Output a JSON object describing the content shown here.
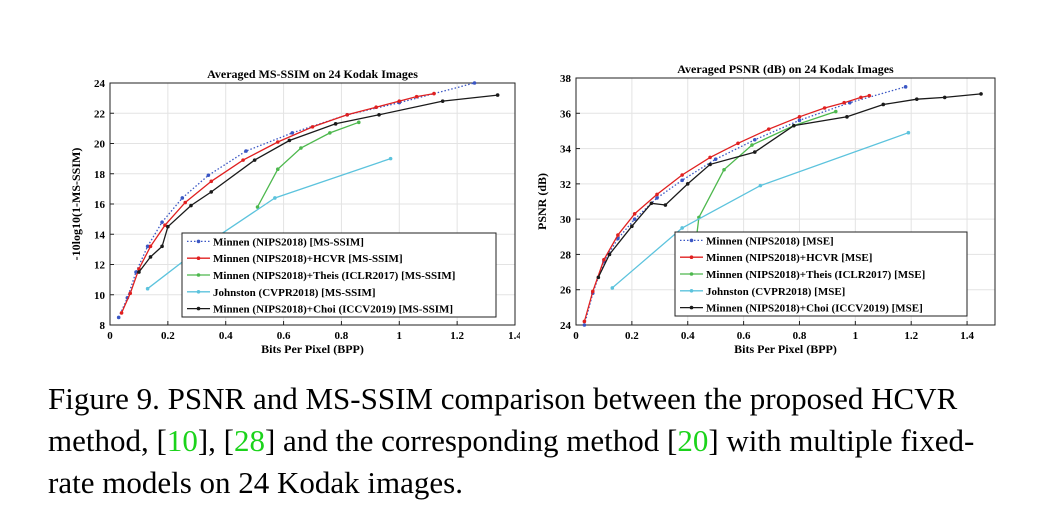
{
  "chart_data": [
    {
      "type": "line",
      "title": "Averaged MS-SSIM on 24 Kodak Images",
      "xlabel": "Bits Per Pixel (BPP)",
      "ylabel": "-10log10(1-MS-SSIM)",
      "xlim": [
        0,
        1.4
      ],
      "ylim": [
        8,
        24
      ],
      "xticks": [
        0,
        0.2,
        0.4,
        0.6,
        0.8,
        1,
        1.2,
        1.4
      ],
      "xtick_labels": [
        "0",
        "0.2",
        "0.4",
        "0.6",
        "0.8",
        "1",
        "1.2",
        "1.4"
      ],
      "yticks": [
        8,
        10,
        12,
        14,
        16,
        18,
        20,
        22,
        24
      ],
      "ytick_labels": [
        "8",
        "10",
        "12",
        "14",
        "16",
        "18",
        "20",
        "22",
        "24"
      ],
      "grid": true,
      "legend_position": "bottom-right",
      "series": [
        {
          "name": "Minnen (NIPS2018) [MS-SSIM]",
          "color": "#3a56c4",
          "dash": "dotted",
          "x": [
            0.03,
            0.06,
            0.09,
            0.13,
            0.18,
            0.25,
            0.34,
            0.47,
            0.63,
            0.82,
            1.0,
            1.26
          ],
          "y": [
            8.5,
            9.8,
            11.5,
            13.2,
            14.8,
            16.4,
            17.9,
            19.5,
            20.7,
            21.9,
            22.7,
            24.0
          ]
        },
        {
          "name": "Minnen (NIPS2018)+HCVR [MS-SSIM]",
          "color": "#e02020",
          "dash": "solid",
          "x": [
            0.04,
            0.07,
            0.1,
            0.14,
            0.19,
            0.26,
            0.35,
            0.46,
            0.58,
            0.7,
            0.82,
            0.92,
            1.0,
            1.06,
            1.12
          ],
          "y": [
            8.8,
            10.1,
            11.7,
            13.2,
            14.6,
            16.1,
            17.5,
            18.9,
            20.1,
            21.1,
            21.9,
            22.4,
            22.8,
            23.1,
            23.3
          ]
        },
        {
          "name": "Minnen (NIPS2018)+Theis (ICLR2017) [MS-SSIM]",
          "color": "#4db84d",
          "dash": "solid",
          "x": [
            0.51,
            0.58,
            0.66,
            0.76,
            0.86
          ],
          "y": [
            15.8,
            18.3,
            19.7,
            20.7,
            21.4
          ]
        },
        {
          "name": "Johnston (CVPR2018) [MS-SSIM]",
          "color": "#5cc3dd",
          "dash": "solid",
          "x": [
            0.13,
            0.32,
            0.57,
            0.97
          ],
          "y": [
            10.4,
            13.2,
            16.4,
            19.0
          ]
        },
        {
          "name": "Minnen (NIPS2018)+Choi (ICCV2019) [MS-SSIM]",
          "color": "#1a1a1a",
          "dash": "solid",
          "x": [
            0.1,
            0.14,
            0.18,
            0.2,
            0.28,
            0.35,
            0.5,
            0.62,
            0.78,
            0.93,
            1.15,
            1.34
          ],
          "y": [
            11.5,
            12.5,
            13.2,
            14.5,
            15.9,
            16.8,
            18.9,
            20.2,
            21.3,
            21.9,
            22.8,
            23.2
          ]
        }
      ]
    },
    {
      "type": "line",
      "title": "Averaged PSNR (dB) on 24 Kodak Images",
      "xlabel": "Bits Per Pixel (BPP)",
      "ylabel": "PSNR (dB)",
      "xlim": [
        0,
        1.5
      ],
      "ylim": [
        24,
        38
      ],
      "xticks": [
        0,
        0.2,
        0.4,
        0.6,
        0.8,
        1,
        1.2,
        1.4
      ],
      "xtick_labels": [
        "0",
        "0.2",
        "0.4",
        "0.6",
        "0.8",
        "1",
        "1.2",
        "1.4"
      ],
      "yticks": [
        24,
        26,
        28,
        30,
        32,
        34,
        36,
        38
      ],
      "ytick_labels": [
        "24",
        "26",
        "28",
        "30",
        "32",
        "34",
        "36",
        "38"
      ],
      "grid": true,
      "legend_position": "bottom-right",
      "series": [
        {
          "name": "Minnen (NIPS2018) [MSE]",
          "color": "#3a56c4",
          "dash": "dotted",
          "x": [
            0.03,
            0.06,
            0.1,
            0.15,
            0.21,
            0.29,
            0.38,
            0.5,
            0.64,
            0.8,
            0.98,
            1.18
          ],
          "y": [
            24.0,
            25.8,
            27.6,
            28.9,
            30.0,
            31.2,
            32.2,
            33.4,
            34.5,
            35.6,
            36.6,
            37.5
          ]
        },
        {
          "name": "Minnen (NIPS2018)+HCVR [MSE]",
          "color": "#e02020",
          "dash": "solid",
          "x": [
            0.03,
            0.06,
            0.1,
            0.15,
            0.21,
            0.29,
            0.38,
            0.48,
            0.58,
            0.69,
            0.8,
            0.89,
            0.96,
            1.02,
            1.05
          ],
          "y": [
            24.2,
            25.9,
            27.7,
            29.1,
            30.3,
            31.4,
            32.5,
            33.5,
            34.3,
            35.1,
            35.8,
            36.3,
            36.6,
            36.9,
            37.0
          ]
        },
        {
          "name": "Minnen (NIPS2018)+Theis (ICLR2017) [MSE]",
          "color": "#4db84d",
          "dash": "solid",
          "x": [
            0.42,
            0.44,
            0.53,
            0.63,
            0.78,
            0.93
          ],
          "y": [
            27.5,
            30.1,
            32.8,
            34.2,
            35.3,
            36.1
          ]
        },
        {
          "name": "Johnston (CVPR2018) [MSE]",
          "color": "#5cc3dd",
          "dash": "solid",
          "x": [
            0.13,
            0.38,
            0.66,
            1.19
          ],
          "y": [
            26.1,
            29.5,
            31.9,
            34.9
          ]
        },
        {
          "name": "Minnen (NIPS2018)+Choi (ICCV2019) [MSE]",
          "color": "#1a1a1a",
          "dash": "solid",
          "x": [
            0.08,
            0.12,
            0.2,
            0.27,
            0.32,
            0.4,
            0.48,
            0.64,
            0.78,
            0.97,
            1.1,
            1.22,
            1.32,
            1.45
          ],
          "y": [
            26.7,
            28.0,
            29.6,
            30.9,
            30.8,
            32.0,
            33.1,
            33.8,
            35.3,
            35.8,
            36.5,
            36.8,
            36.9,
            37.1
          ]
        }
      ]
    }
  ],
  "caption": {
    "part1": "Figure 9. PSNR and MS-SSIM comparison between the proposed HCVR method, [",
    "ref1": "10",
    "part2": "], [",
    "ref2": "28",
    "part3": "] and the corresponding method [",
    "ref3": "20",
    "part4": "] with multiple fixed-rate models on 24 Kodak images."
  }
}
